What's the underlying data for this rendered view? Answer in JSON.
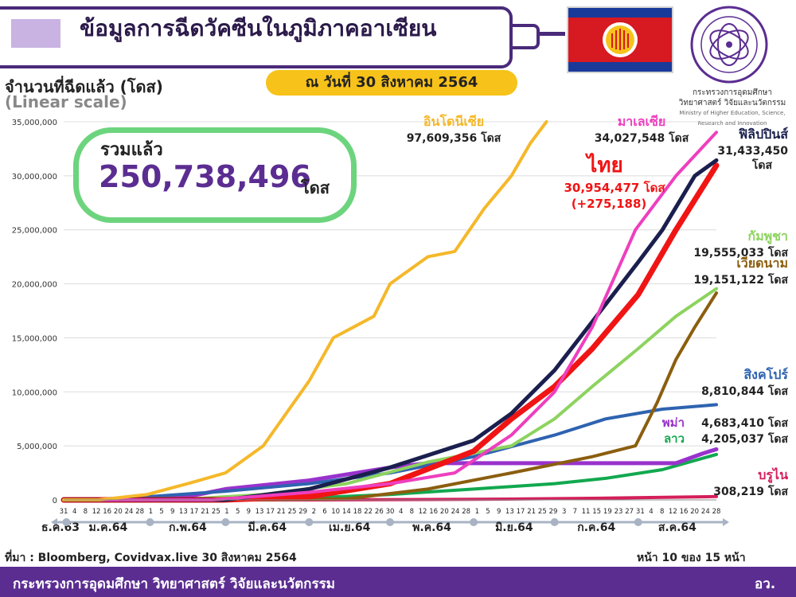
{
  "header": {
    "title": "ข้อมูลการฉีดวัคซีนในภูมิภาคอาเซียน",
    "date_text": "ณ วันที่ 30 สิงหาคม 2564"
  },
  "ministry_logo": {
    "name_th": "กระทรวงการอุดมศึกษา",
    "name_th_2": "วิทยาศาสตร์ วิจัยและนวัตกรรม",
    "name_en": "Ministry of Higher Education, Science, Research and Innovation"
  },
  "total": {
    "label": "รวมแล้ว",
    "value": "250,738,496",
    "unit": "โดส"
  },
  "colors": {
    "purple": "#5b2d91",
    "total_border": "#6dd47e",
    "date_pill": "#f7c21a"
  },
  "chart_data": {
    "type": "line",
    "ylabel": "จำนวนที่ฉีดแล้ว (โดส)",
    "yscale_label": "(Linear scale)",
    "ylim": [
      0,
      35000000
    ],
    "yticks": [
      "0",
      "5,000,000",
      "10,000,000",
      "15,000,000",
      "20,000,000",
      "25,000,000",
      "30,000,000",
      "35,000,000"
    ],
    "x_day_ticks": [
      "31",
      "4",
      "8",
      "12",
      "16",
      "20",
      "24",
      "28",
      "1",
      "5",
      "9",
      "13",
      "17",
      "21",
      "25",
      "1",
      "5",
      "9",
      "13",
      "17",
      "21",
      "25",
      "29",
      "2",
      "6",
      "10",
      "14",
      "18",
      "22",
      "26",
      "30",
      "4",
      "8",
      "12",
      "16",
      "20",
      "24",
      "28",
      "1",
      "5",
      "9",
      "13",
      "17",
      "21",
      "25",
      "29",
      "3",
      "7",
      "11",
      "15",
      "19",
      "23",
      "27",
      "31",
      "4",
      "8",
      "12",
      "16",
      "20",
      "24",
      "28"
    ],
    "month_labels": [
      "ธ.ค.63",
      "ม.ค.64",
      "ก.พ.64",
      "มี.ค.64",
      "เม.ย.64",
      "พ.ค.64",
      "มิ.ย.64",
      "ก.ค.64",
      "ส.ค.64"
    ],
    "x_start": "2020-12-31",
    "x_end": "2021-08-30",
    "series": [
      {
        "name": "อินโดนีเซีย",
        "value_text": "97,609,356 โดส",
        "color": "#f5b82a",
        "points": [
          [
            "2021-01-13",
            0
          ],
          [
            "2021-01-31",
            500000
          ],
          [
            "2021-02-15",
            1500000
          ],
          [
            "2021-03-01",
            2500000
          ],
          [
            "2021-03-15",
            5000000
          ],
          [
            "2021-04-01",
            11000000
          ],
          [
            "2021-04-10",
            15000000
          ],
          [
            "2021-04-25",
            17000000
          ],
          [
            "2021-05-01",
            20000000
          ],
          [
            "2021-05-15",
            22500000
          ],
          [
            "2021-05-25",
            23000000
          ],
          [
            "2021-06-05",
            27000000
          ],
          [
            "2021-06-15",
            30000000
          ],
          [
            "2021-06-22",
            33000000
          ],
          [
            "2021-06-28",
            35000000
          ]
        ]
      },
      {
        "name": "มาเลเซีย",
        "value_text": "34,027,548 โดส",
        "color": "#ee3fbe",
        "points": [
          [
            "2021-02-24",
            0
          ],
          [
            "2021-04-01",
            700000
          ],
          [
            "2021-05-01",
            1500000
          ],
          [
            "2021-05-25",
            2500000
          ],
          [
            "2021-06-15",
            6000000
          ],
          [
            "2021-07-01",
            10000000
          ],
          [
            "2021-07-15",
            16000000
          ],
          [
            "2021-07-31",
            25000000
          ],
          [
            "2021-08-15",
            30000000
          ],
          [
            "2021-08-30",
            34027548
          ]
        ]
      },
      {
        "name": "ฟิลิปปินส์",
        "value_text": "31,433,450 โดส",
        "color": "#1a1f4e",
        "points": [
          [
            "2021-03-01",
            0
          ],
          [
            "2021-04-01",
            1000000
          ],
          [
            "2021-05-01",
            3000000
          ],
          [
            "2021-06-01",
            5500000
          ],
          [
            "2021-06-15",
            8000000
          ],
          [
            "2021-07-01",
            12000000
          ],
          [
            "2021-07-15",
            16500000
          ],
          [
            "2021-08-01",
            22000000
          ],
          [
            "2021-08-10",
            25000000
          ],
          [
            "2021-08-22",
            30000000
          ],
          [
            "2021-08-30",
            31433450
          ]
        ]
      },
      {
        "name": "ไทย",
        "value_text": "30,954,477 โดส",
        "change_text": "(+275,188)",
        "color": "#f01414",
        "points": [
          [
            "2021-02-28",
            0
          ],
          [
            "2021-04-01",
            300000
          ],
          [
            "2021-05-01",
            1500000
          ],
          [
            "2021-06-01",
            4500000
          ],
          [
            "2021-06-15",
            7500000
          ],
          [
            "2021-07-01",
            10500000
          ],
          [
            "2021-07-15",
            14000000
          ],
          [
            "2021-08-01",
            19000000
          ],
          [
            "2021-08-15",
            25000000
          ],
          [
            "2021-08-30",
            30954477
          ]
        ]
      },
      {
        "name": "กัมพูชา",
        "value_text": "19,555,033 โดส",
        "color": "#8dd35f",
        "points": [
          [
            "2021-02-10",
            0
          ],
          [
            "2021-03-15",
            500000
          ],
          [
            "2021-04-15",
            1500000
          ],
          [
            "2021-05-15",
            3500000
          ],
          [
            "2021-06-15",
            5000000
          ],
          [
            "2021-07-01",
            7500000
          ],
          [
            "2021-07-15",
            10500000
          ],
          [
            "2021-08-01",
            14000000
          ],
          [
            "2021-08-15",
            17000000
          ],
          [
            "2021-08-30",
            19555033
          ]
        ]
      },
      {
        "name": "เวียดนาม",
        "value_text": "19,151,122 โดส",
        "color": "#8b5e0e",
        "points": [
          [
            "2021-03-08",
            0
          ],
          [
            "2021-04-15",
            100000
          ],
          [
            "2021-05-15",
            1000000
          ],
          [
            "2021-06-15",
            2500000
          ],
          [
            "2021-07-15",
            4000000
          ],
          [
            "2021-07-31",
            5000000
          ],
          [
            "2021-08-08",
            9000000
          ],
          [
            "2021-08-15",
            13000000
          ],
          [
            "2021-08-22",
            16000000
          ],
          [
            "2021-08-30",
            19151122
          ]
        ]
      },
      {
        "name": "สิงคโปร์",
        "value_text": "8,810,844 โดส",
        "color": "#2e63b0",
        "points": [
          [
            "2020-12-31",
            0
          ],
          [
            "2021-01-15",
            100000
          ],
          [
            "2021-02-01",
            300000
          ],
          [
            "2021-03-01",
            800000
          ],
          [
            "2021-04-01",
            1500000
          ],
          [
            "2021-05-01",
            2500000
          ],
          [
            "2021-06-01",
            4000000
          ],
          [
            "2021-07-01",
            6000000
          ],
          [
            "2021-07-20",
            7500000
          ],
          [
            "2021-08-10",
            8400000
          ],
          [
            "2021-08-30",
            8810844
          ]
        ]
      },
      {
        "name": "พม่า",
        "value_text": "4,683,410 โดส",
        "color": "#9932cc",
        "points": [
          [
            "2021-01-27",
            0
          ],
          [
            "2021-02-15",
            300000
          ],
          [
            "2021-03-01",
            1000000
          ],
          [
            "2021-04-01",
            1800000
          ],
          [
            "2021-05-01",
            3000000
          ],
          [
            "2021-05-15",
            3400000
          ],
          [
            "2021-08-15",
            3400000
          ],
          [
            "2021-08-25",
            4300000
          ],
          [
            "2021-08-30",
            4683410
          ]
        ]
      },
      {
        "name": "ลาว",
        "value_text": "4,205,037 โดส",
        "color": "#12a84f",
        "points": [
          [
            "2021-03-15",
            0
          ],
          [
            "2021-05-01",
            500000
          ],
          [
            "2021-06-01",
            1000000
          ],
          [
            "2021-07-01",
            1500000
          ],
          [
            "2021-07-20",
            2000000
          ],
          [
            "2021-08-10",
            2800000
          ],
          [
            "2021-08-30",
            4205037
          ]
        ]
      },
      {
        "name": "บรูไน",
        "value_text": "308,219 โดส",
        "color": "#d41e5a",
        "points": [
          [
            "2021-04-02",
            0
          ],
          [
            "2021-06-01",
            50000
          ],
          [
            "2021-07-15",
            150000
          ],
          [
            "2021-08-30",
            308219
          ]
        ]
      }
    ]
  },
  "footer": {
    "source": "ที่มา : Bloomberg, Covidvax.live 30 สิงหาคม 2564",
    "page": "หน้า 10 ของ 15 หน้า",
    "ministry": "กระทรวงการอุดมศึกษา วิทยาศาสตร์ วิจัยและนวัตกรรม",
    "abbr": "อว."
  }
}
